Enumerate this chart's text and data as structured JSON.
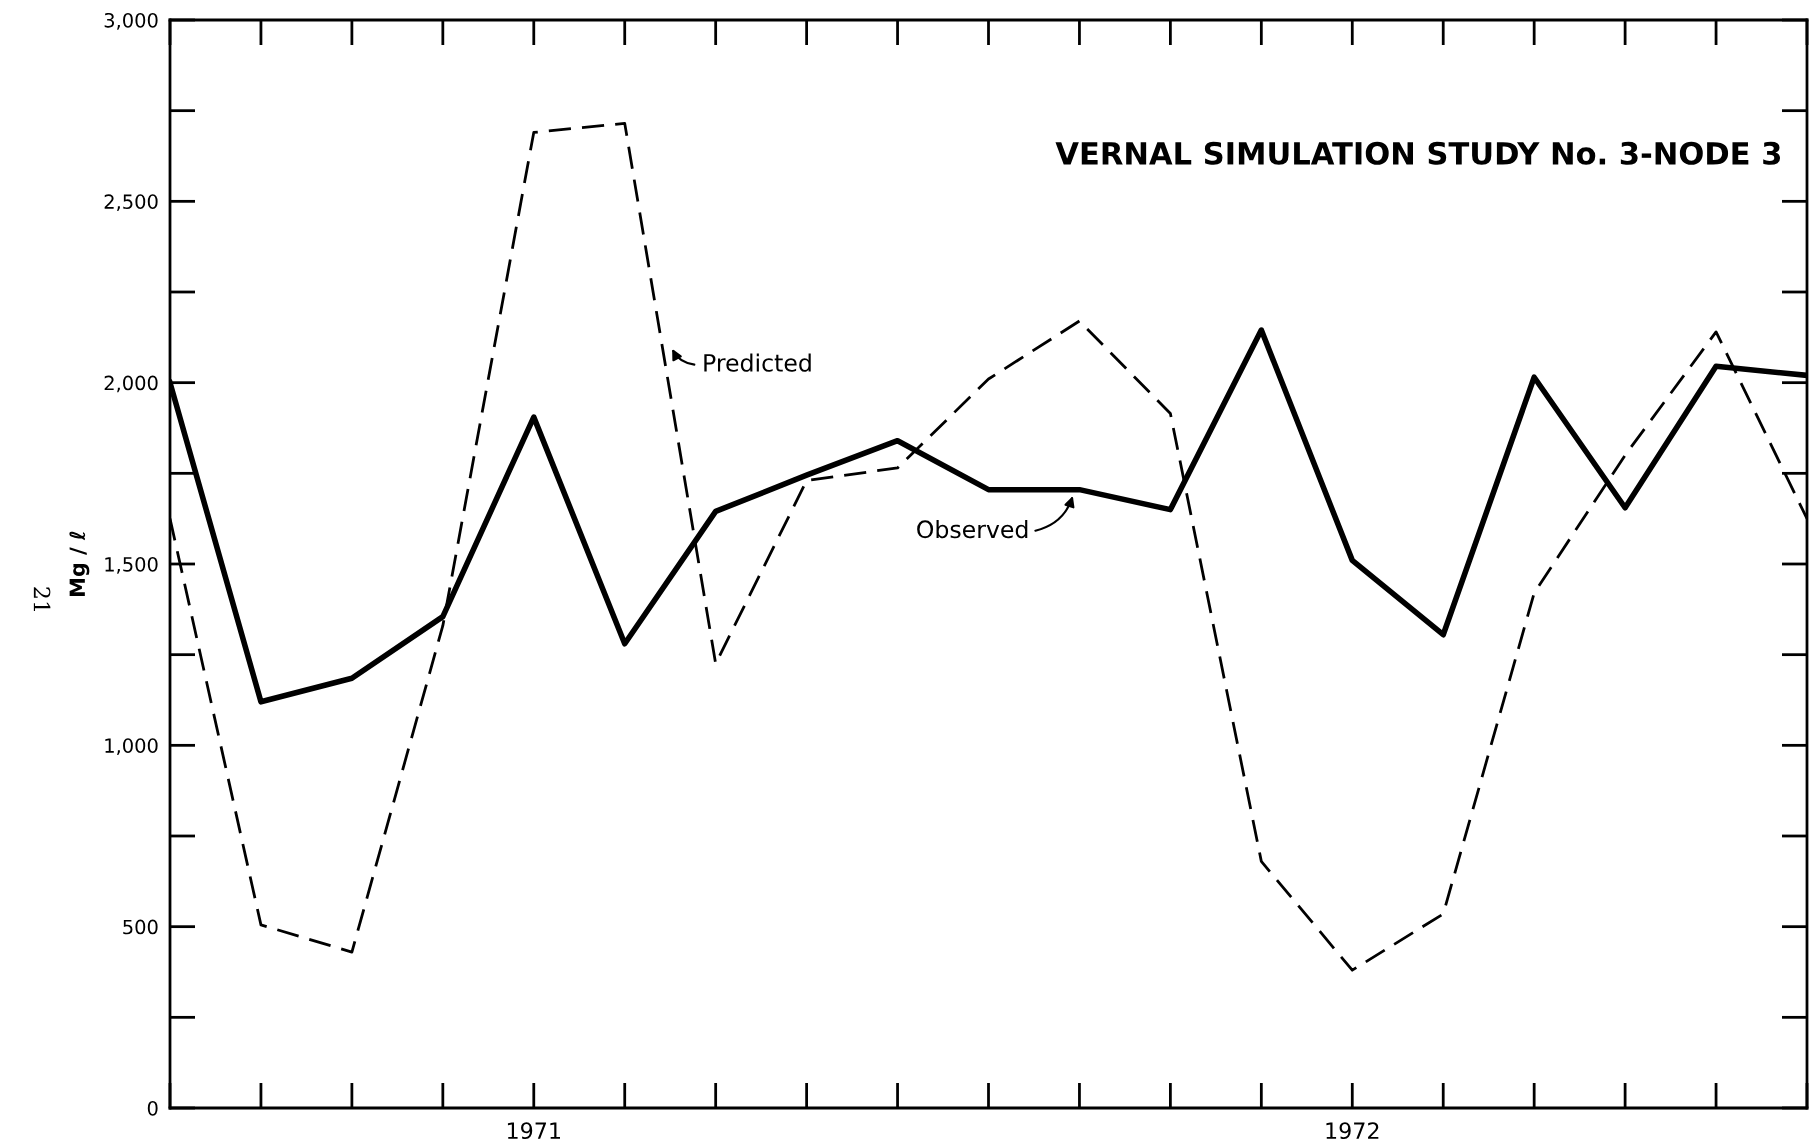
{
  "chart_data": {
    "type": "line",
    "title": "VERNAL SIMULATION STUDY No. 3-NODE 3",
    "ylabel": "Mg / ℓ",
    "categories": [
      null,
      null,
      null,
      null,
      "1971",
      null,
      null,
      null,
      null,
      null,
      null,
      null,
      null,
      "1972",
      null,
      null,
      null,
      null,
      null
    ],
    "series": [
      {
        "color": "#000000",
        "line_style": "solid",
        "values": [
          2000,
          1120,
          1185,
          1355,
          1905,
          1280,
          1645,
          1745,
          1840,
          1705,
          1705,
          1650,
          2145,
          1510,
          1305,
          2015,
          1655,
          2045,
          2020
        ]
      },
      {
        "color": "#000000",
        "line_style": "dashed",
        "values": [
          1625,
          505,
          430,
          1330,
          2690,
          2715,
          1225,
          1730,
          1765,
          2010,
          2170,
          1915,
          680,
          380,
          535,
          1420,
          1800,
          2140,
          1625
        ]
      }
    ],
    "annotations": [
      "Predicted",
      "Observed",
      "21"
    ],
    "ylim": [
      0,
      3000
    ],
    "yticks": [
      0,
      500,
      {
        "value": 1000,
        "label": "1,000"
      },
      {
        "value": 1500,
        "label": "1,500"
      },
      {
        "value": 2000,
        "label": "2,000"
      },
      {
        "value": 2500,
        "label": "2,500"
      },
      {
        "value": 3000,
        "label": "3,000"
      }
    ],
    "grid": false,
    "legend": false,
    "marker": "none"
  }
}
